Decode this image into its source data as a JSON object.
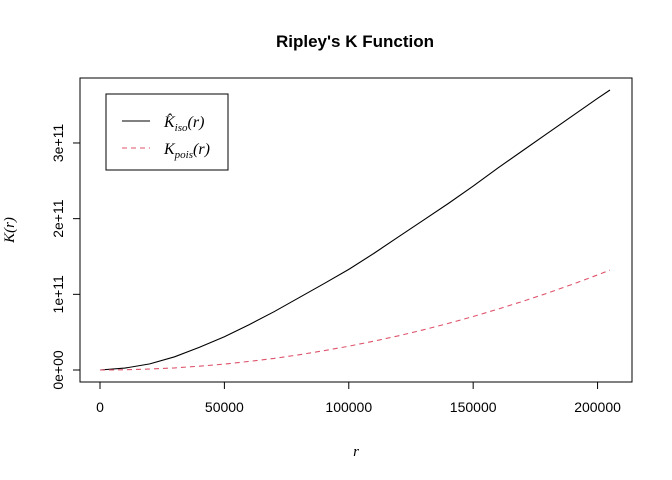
{
  "chart_data": {
    "type": "line",
    "title": "Ripley's K Function",
    "xlabel": "r",
    "ylabel": "K(r)",
    "xlim": [
      0,
      205000
    ],
    "ylim": [
      0,
      370000000000
    ],
    "xticks": [
      0,
      50000,
      100000,
      150000,
      200000
    ],
    "xtick_labels": [
      "0",
      "50000",
      "100000",
      "150000",
      "200000"
    ],
    "yticks": [
      0,
      100000000000,
      200000000000,
      300000000000
    ],
    "ytick_labels": [
      "0e+00",
      "1e+11",
      "2e+11",
      "3e+11"
    ],
    "legend_position": "top-left",
    "series": [
      {
        "name": "K̂iso(r)",
        "label_main": "K̂",
        "label_sub": "iso",
        "label_tail": "(r)",
        "color": "#000000",
        "dash": "solid",
        "x": [
          0,
          10000,
          20000,
          30000,
          40000,
          50000,
          60000,
          70000,
          80000,
          90000,
          100000,
          110000,
          120000,
          130000,
          140000,
          150000,
          160000,
          170000,
          180000,
          190000,
          200000,
          205000
        ],
        "y": [
          0,
          2500000000,
          8000000000,
          17500000000,
          30000000000,
          44000000000,
          60000000000,
          77000000000,
          95500000000,
          114000000000,
          133000000000,
          154000000000,
          176000000000,
          198000000000,
          220000000000,
          243000000000,
          267000000000,
          290000000000,
          313000000000,
          336000000000,
          359000000000,
          370000000000
        ]
      },
      {
        "name": "Kpois(r)",
        "label_main": "K",
        "label_sub": "pois",
        "label_tail": "(r)",
        "color": "#DF536B",
        "dash": "dashed",
        "x": [
          0,
          10000,
          20000,
          30000,
          40000,
          50000,
          60000,
          70000,
          80000,
          90000,
          100000,
          110000,
          120000,
          130000,
          140000,
          150000,
          160000,
          170000,
          180000,
          190000,
          200000,
          205000
        ],
        "y": [
          0,
          314000000,
          1257000000,
          2827000000,
          5027000000,
          7854000000,
          11310000000,
          15394000000,
          20106000000,
          25447000000,
          31416000000,
          38013000000,
          45239000000,
          53093000000,
          61575000000,
          70686000000,
          80425000000,
          90792000000,
          101788000000,
          113411000000,
          125664000000,
          132025000000
        ]
      }
    ]
  }
}
